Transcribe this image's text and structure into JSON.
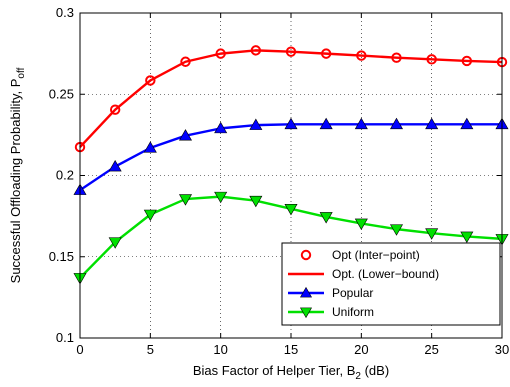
{
  "chart_data": {
    "type": "line",
    "xlabel": "Bias Factor of Helper Tier, B",
    "xlabel_sub": "2",
    "xlabel_suffix": " (dB)",
    "ylabel": "Successful Offloading Probability, P",
    "ylabel_sub": "off",
    "xlim": [
      0,
      30
    ],
    "ylim": [
      0.1,
      0.3
    ],
    "xticks": [
      0,
      5,
      10,
      15,
      20,
      25,
      30
    ],
    "yticks": [
      0.1,
      0.15,
      0.2,
      0.25,
      0.3
    ],
    "xtick_labels": [
      "0",
      "5",
      "10",
      "15",
      "20",
      "25",
      "30"
    ],
    "ytick_labels": [
      "0.1",
      "0.15",
      "0.2",
      "0.25",
      "0.3"
    ],
    "grid": true,
    "legend_position": "bottom-right",
    "series": [
      {
        "name": "Opt (Inter−point)",
        "style": "markers-only",
        "marker": "circle",
        "color": "#ff0000",
        "x": [
          0,
          2.5,
          5,
          7.5,
          10,
          12.5,
          15,
          17.5,
          20,
          22.5,
          25,
          27.5,
          30
        ],
        "y": [
          0.2175,
          0.2405,
          0.2585,
          0.27,
          0.275,
          0.277,
          0.2762,
          0.275,
          0.2738,
          0.2725,
          0.2715,
          0.2705,
          0.2698
        ]
      },
      {
        "name": "Opt. (Lower−bound)",
        "style": "line-only",
        "marker": "none",
        "color": "#ff0000",
        "x": [
          0,
          2.5,
          5,
          7.5,
          10,
          12.5,
          15,
          17.5,
          20,
          22.5,
          25,
          27.5,
          30
        ],
        "y": [
          0.2175,
          0.2405,
          0.2585,
          0.27,
          0.275,
          0.277,
          0.2762,
          0.275,
          0.2738,
          0.2725,
          0.2715,
          0.2705,
          0.2698
        ]
      },
      {
        "name": "Popular",
        "style": "line-markers",
        "marker": "triangle-up",
        "color": "#0000ff",
        "x": [
          0,
          2.5,
          5,
          7.5,
          10,
          12.5,
          15,
          17.5,
          20,
          22.5,
          25,
          27.5,
          30
        ],
        "y": [
          0.191,
          0.2055,
          0.217,
          0.2245,
          0.229,
          0.231,
          0.2315,
          0.2315,
          0.2315,
          0.2315,
          0.2315,
          0.2315,
          0.2315
        ]
      },
      {
        "name": "Uniform",
        "style": "line-markers",
        "marker": "triangle-down",
        "color": "#00e000",
        "x": [
          0,
          2.5,
          5,
          7.5,
          10,
          12.5,
          15,
          17.5,
          20,
          22.5,
          25,
          27.5,
          30
        ],
        "y": [
          0.137,
          0.159,
          0.176,
          0.1855,
          0.187,
          0.1845,
          0.1795,
          0.1745,
          0.1705,
          0.167,
          0.1645,
          0.1625,
          0.161
        ]
      }
    ]
  }
}
